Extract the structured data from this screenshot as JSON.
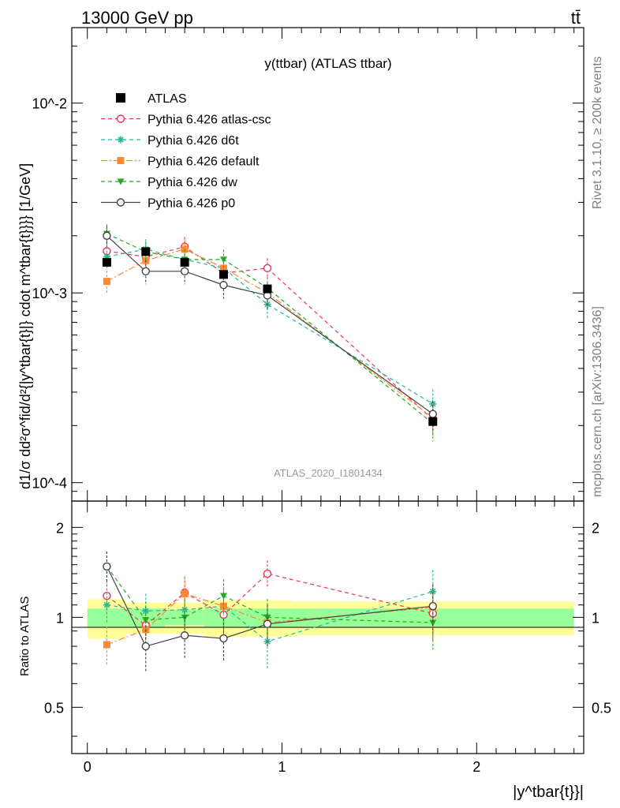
{
  "header": {
    "energy_label": "13000 GeV pp",
    "process_label": "tt̄"
  },
  "side_labels": {
    "rivet": "Rivet 3.1.10, ≥ 200k events",
    "source": "mcplots.cern.ch [arXiv:1306.3436]"
  },
  "chart_data": {
    "type": "line",
    "title": "y(ttbar) (ATLAS ttbar)",
    "analysis_tag": "ATLAS_2020_I1801434",
    "ylabel": "d1/σ dd²σ^fid/d²{|y^tbar{t}|} cdot m^tbar{t}}}} [1/GeV]",
    "ratio_ylabel": "Ratio to ATLAS",
    "xlabel": "|y^tbar{t}}|",
    "xlim": [
      -0.08,
      2.55
    ],
    "ylim": [
      8e-05,
      0.025
    ],
    "ratio_ylim": [
      0.35,
      2.45
    ],
    "x_ticks": [
      "0",
      "1",
      "2"
    ],
    "y_ticks": [
      "10^-4",
      "10^-3",
      "10^-2"
    ],
    "ratio_ticks": [
      "0.5",
      "1",
      "2"
    ],
    "legend_position": "top-left",
    "x": [
      0.1,
      0.3,
      0.5,
      0.7,
      0.925,
      1.775
    ],
    "bin_edges": [
      0,
      0.2,
      0.4,
      0.6,
      0.8,
      1.05,
      2.5
    ],
    "ratio_band_inner": [
      0.07,
      0.07,
      0.06,
      0.07,
      0.07,
      0.07
    ],
    "ratio_band_outer": [
      0.15,
      0.12,
      0.12,
      0.14,
      0.14,
      0.13
    ],
    "series": [
      {
        "name": "ATLAS",
        "color": "#000000",
        "marker": "filled-square",
        "line": "none",
        "values": [
          0.00145,
          0.00165,
          0.00145,
          0.00125,
          0.00105,
          0.00021
        ],
        "errors": [
          7e-05,
          8e-05,
          7e-05,
          6e-05,
          5e-05,
          1e-05
        ]
      },
      {
        "name": "Pythia 6.426 atlas-csc",
        "color": "#ee3355",
        "marker": "open-circle",
        "line": "dashed",
        "values": [
          0.00166,
          0.00155,
          0.00175,
          0.00127,
          0.00135,
          0.000215
        ],
        "errors": [
          0.00022,
          0.0002,
          0.00022,
          0.00018,
          0.00017,
          4e-05
        ],
        "ratio": [
          1.18,
          0.94,
          1.21,
          1.02,
          1.4,
          1.03
        ],
        "ratio_errors": [
          0.15,
          0.15,
          0.16,
          0.15,
          0.15,
          0.2
        ]
      },
      {
        "name": "Pythia 6.426 d6t",
        "color": "#22bb99",
        "marker": "star",
        "line": "dashed",
        "values": [
          0.00155,
          0.0017,
          0.0015,
          0.00135,
          0.00087,
          0.00026
        ],
        "errors": [
          0.0002,
          0.00022,
          0.0002,
          0.00018,
          0.00014,
          5e-05
        ],
        "ratio": [
          1.1,
          1.05,
          1.06,
          1.09,
          0.83,
          1.22
        ],
        "ratio_errors": [
          0.15,
          0.15,
          0.15,
          0.15,
          0.16,
          0.22
        ]
      },
      {
        "name": "Pythia 6.426 default",
        "color": "#ff8833",
        "marker": "filled-square",
        "line": "dashdot",
        "values": [
          0.00115,
          0.00148,
          0.0017,
          0.00135,
          0.001,
          0.00022
        ],
        "errors": [
          0.00016,
          0.0002,
          0.00022,
          0.00018,
          0.00015,
          4e-05
        ],
        "ratio": [
          0.81,
          0.91,
          1.2,
          1.09,
          0.96,
          1.08
        ],
        "ratio_errors": [
          0.12,
          0.15,
          0.16,
          0.15,
          0.15,
          0.2
        ]
      },
      {
        "name": "Pythia 6.426 dw",
        "color": "#22aa22",
        "marker": "filled-triangle-down",
        "line": "dashed",
        "values": [
          0.00205,
          0.00165,
          0.0015,
          0.0015,
          0.00106,
          0.000205
        ],
        "errors": [
          0.00025,
          0.00021,
          0.0002,
          0.00019,
          0.00015,
          4e-05
        ],
        "ratio": [
          1.48,
          0.98,
          1.0,
          1.18,
          1.0,
          0.96
        ],
        "ratio_errors": [
          0.18,
          0.15,
          0.15,
          0.16,
          0.15,
          0.18
        ]
      },
      {
        "name": "Pythia 6.426 p0",
        "color": "#444444",
        "marker": "open-circle",
        "line": "solid",
        "values": [
          0.002,
          0.0013,
          0.0013,
          0.0011,
          0.00097,
          0.00023
        ],
        "errors": [
          0.00025,
          0.00019,
          0.00019,
          0.00017,
          0.00015,
          4e-05
        ],
        "ratio": [
          1.48,
          0.8,
          0.87,
          0.85,
          0.95,
          1.09
        ],
        "ratio_errors": [
          0.18,
          0.14,
          0.14,
          0.14,
          0.15,
          0.2
        ]
      }
    ]
  }
}
